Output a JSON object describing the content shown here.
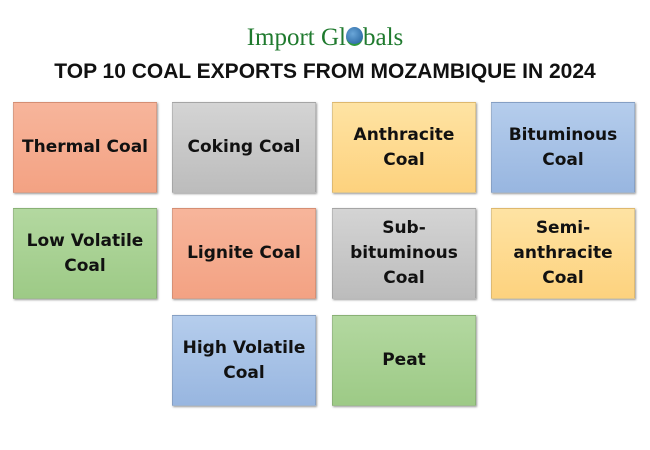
{
  "logo": {
    "text_before": "Import Gl",
    "text_after": "bals"
  },
  "title": "TOP 10 COAL EXPORTS FROM MOZAMBIQUE IN 2024",
  "colors": {
    "salmon": "#f5aa8d",
    "gray": "#c8c8c8",
    "yellow": "#fdd98e",
    "blue": "#a6c1e6",
    "green": "#a8d193"
  },
  "items": [
    {
      "label": "Thermal Coal",
      "color": "salmon"
    },
    {
      "label": "Coking Coal",
      "color": "gray"
    },
    {
      "label": "Anthracite Coal",
      "color": "yellow"
    },
    {
      "label": "Bituminous Coal",
      "color": "blue"
    },
    {
      "label": "Low Volatile Coal",
      "color": "green"
    },
    {
      "label": "Lignite Coal",
      "color": "salmon"
    },
    {
      "label": "Sub-bituminous Coal",
      "color": "gray"
    },
    {
      "label": "Semi-anthracite Coal",
      "color": "yellow"
    },
    {
      "label": "High Volatile Coal",
      "color": "blue"
    },
    {
      "label": "Peat",
      "color": "green"
    }
  ]
}
